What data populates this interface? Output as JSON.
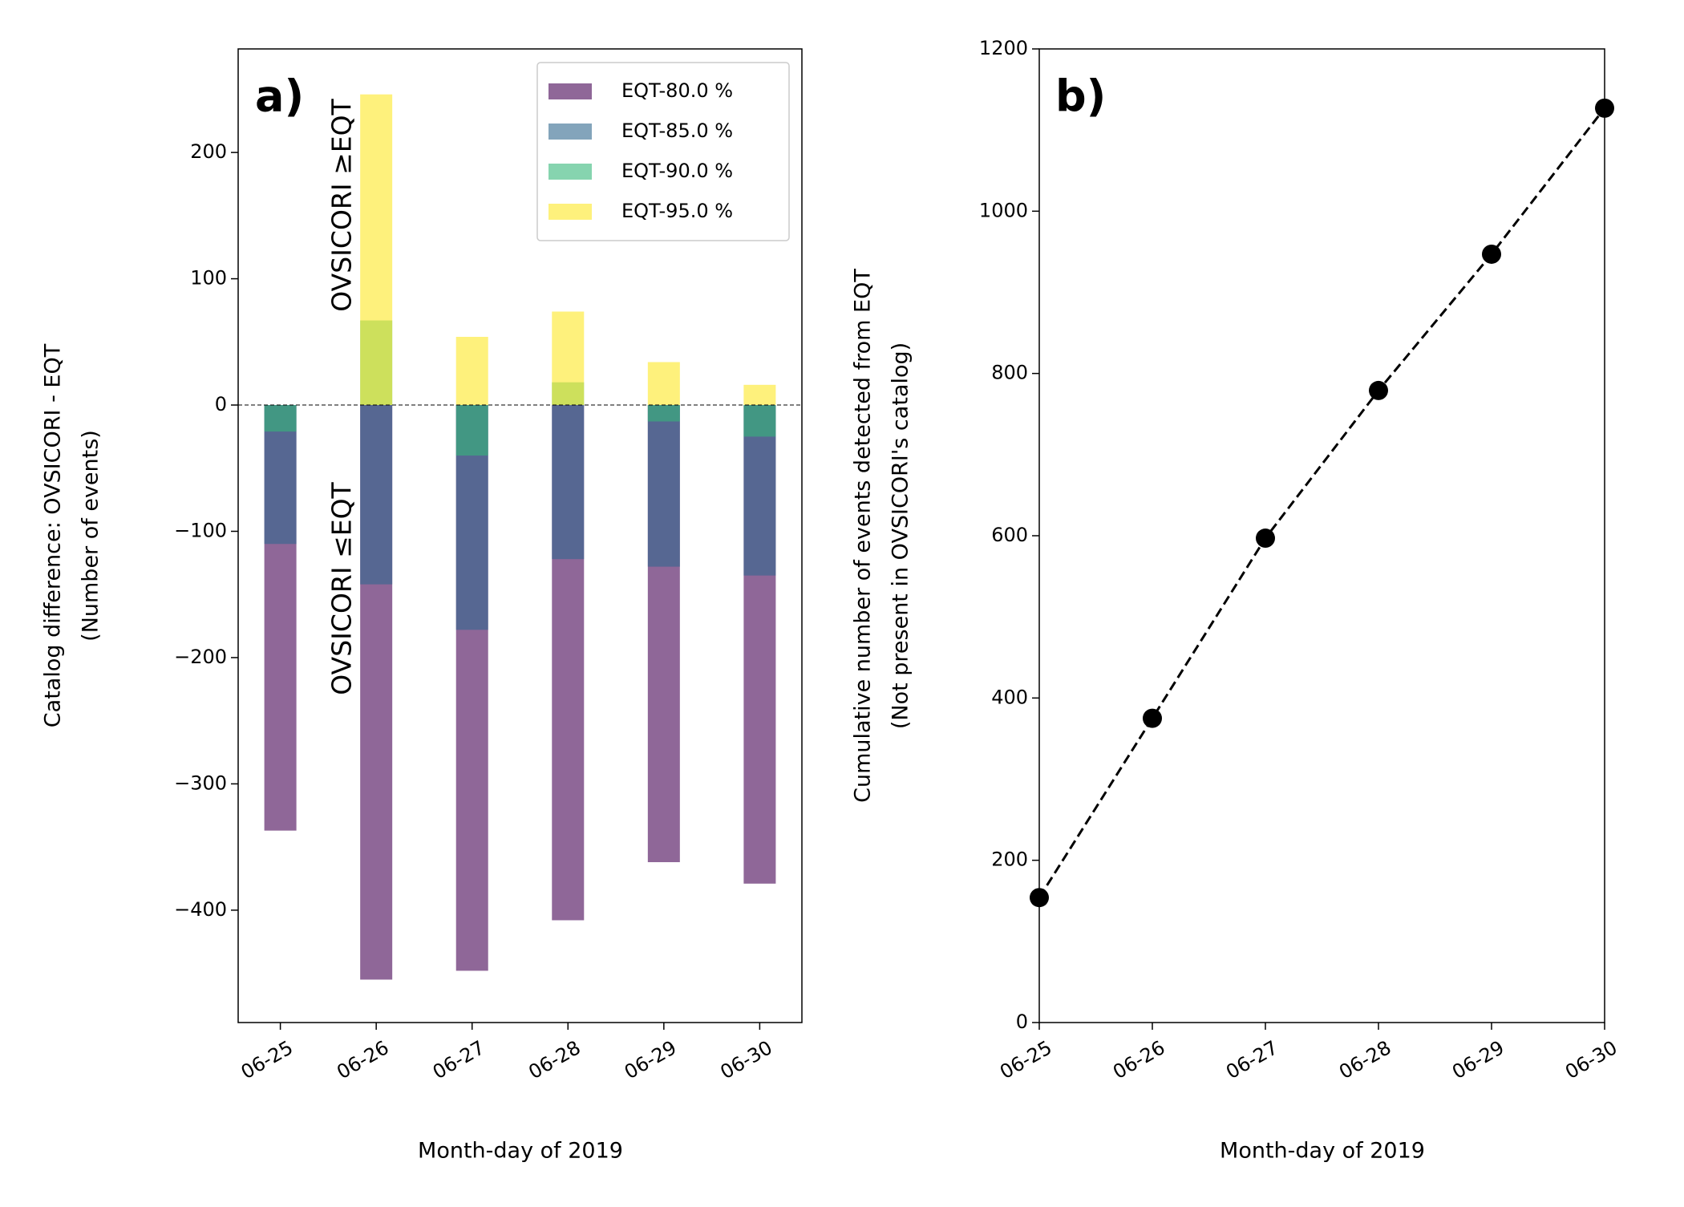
{
  "chart_data": [
    {
      "type": "bar",
      "annotations": [
        "a)",
        "OVSICORI  ≥EQT",
        "OVSICORI  ≤EQT"
      ],
      "xlabel": "Month-day of 2019",
      "ylabel": [
        "Catalog difference: OVSICORI - EQT",
        "(Number of events)"
      ],
      "categories": [
        "06-25",
        "06-26",
        "06-27",
        "06-28",
        "06-29",
        "06-30"
      ],
      "series": [
        {
          "name": "EQT-80.0 %",
          "color": "#440154",
          "values": [
            -337,
            -455,
            -448,
            -408,
            -362,
            -379
          ]
        },
        {
          "name": "EQT-85.0 %",
          "color": "#31688e",
          "values": [
            -110,
            -142,
            -178,
            -122,
            -128,
            -135
          ]
        },
        {
          "name": "EQT-90.0 %",
          "color": "#35b779",
          "values": [
            -21,
            67,
            -40,
            18,
            -13,
            -25
          ]
        },
        {
          "name": "EQT-95.0 %",
          "color": "#fde725",
          "values": [
            0,
            246,
            54,
            74,
            34,
            16
          ]
        }
      ],
      "ylim": [
        -489,
        282
      ],
      "yticks": [
        {
          "value": -400,
          "label": "−400"
        },
        {
          "value": -300,
          "label": "−300"
        },
        {
          "value": -200,
          "label": "−200"
        },
        {
          "value": -100,
          "label": "−100"
        },
        0,
        100,
        200
      ],
      "legend": "upper right"
    },
    {
      "type": "line",
      "annotations": [
        "b)"
      ],
      "xlabel": "Month-day of 2019",
      "ylabel": [
        "Cumulative number of events detected from EQT",
        "(Not present in OVSICORI's catalog)"
      ],
      "categories": [
        "06-25",
        "06-26",
        "06-27",
        "06-28",
        "06-29",
        "06-30"
      ],
      "values": [
        154,
        375,
        597,
        779,
        947,
        1127
      ],
      "color": "#000000",
      "linestyle": "dashed",
      "ylim": [
        0,
        1200
      ],
      "yticks": [
        0,
        200,
        400,
        600,
        800,
        1000,
        1200
      ]
    }
  ]
}
